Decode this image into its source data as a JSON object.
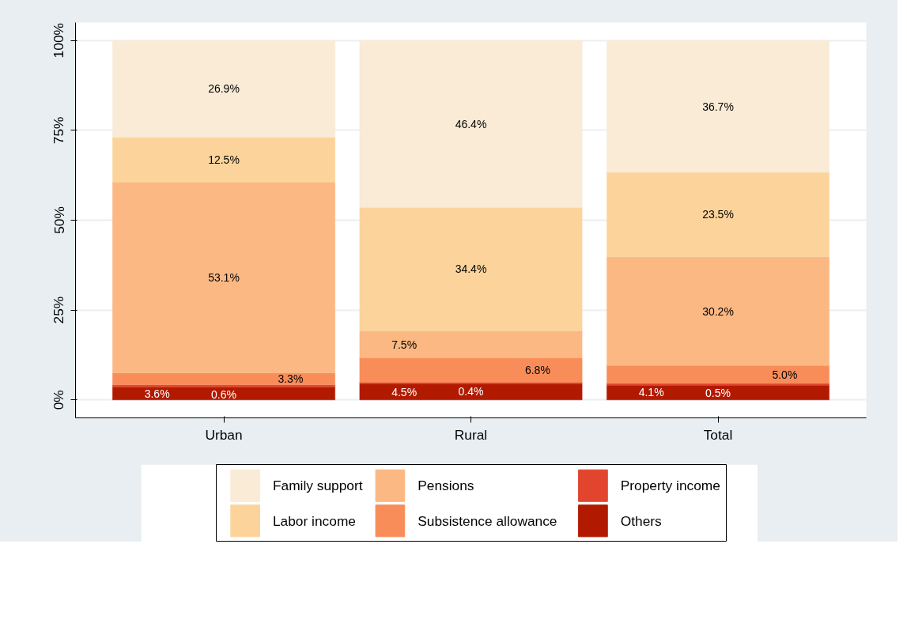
{
  "chart_data": {
    "type": "bar",
    "stacked": true,
    "categories": [
      "Urban",
      "Rural",
      "Total"
    ],
    "series": [
      {
        "name": "Others",
        "color": "#b21a00",
        "values": [
          3.6,
          4.5,
          4.1
        ],
        "value_labels": [
          "3.6%",
          "4.5%",
          "4.1%"
        ]
      },
      {
        "name": "Property income",
        "color": "#e1452e",
        "values": [
          0.6,
          0.4,
          0.5
        ],
        "value_labels": [
          "0.6%",
          "0.4%",
          "0.5%"
        ]
      },
      {
        "name": "Subsistence allowance",
        "color": "#f98d5a",
        "values": [
          3.3,
          6.8,
          5.0
        ],
        "value_labels": [
          "3.3%",
          "6.8%",
          "5.0%"
        ]
      },
      {
        "name": "Pensions",
        "color": "#fcb882",
        "values": [
          53.1,
          7.5,
          30.2
        ],
        "value_labels": [
          "53.1%",
          "7.5%",
          "30.2%"
        ]
      },
      {
        "name": "Labor income",
        "color": "#fcd49b",
        "values": [
          12.5,
          34.4,
          23.5
        ],
        "value_labels": [
          "12.5%",
          "34.4%",
          "23.5%"
        ]
      },
      {
        "name": "Family support",
        "color": "#f9ebd6",
        "values": [
          26.9,
          46.4,
          36.7
        ],
        "value_labels": [
          "26.9%",
          "46.4%",
          "36.7%"
        ]
      }
    ],
    "ylim": [
      -5,
      105
    ],
    "yticks": [
      {
        "value": 0,
        "label": "0%"
      },
      {
        "value": 25,
        "label": "25%"
      },
      {
        "value": 50,
        "label": "50%"
      },
      {
        "value": 75,
        "label": "75%"
      },
      {
        "value": 100,
        "label": "100%"
      }
    ],
    "grid": "y",
    "legend": "bottom"
  }
}
